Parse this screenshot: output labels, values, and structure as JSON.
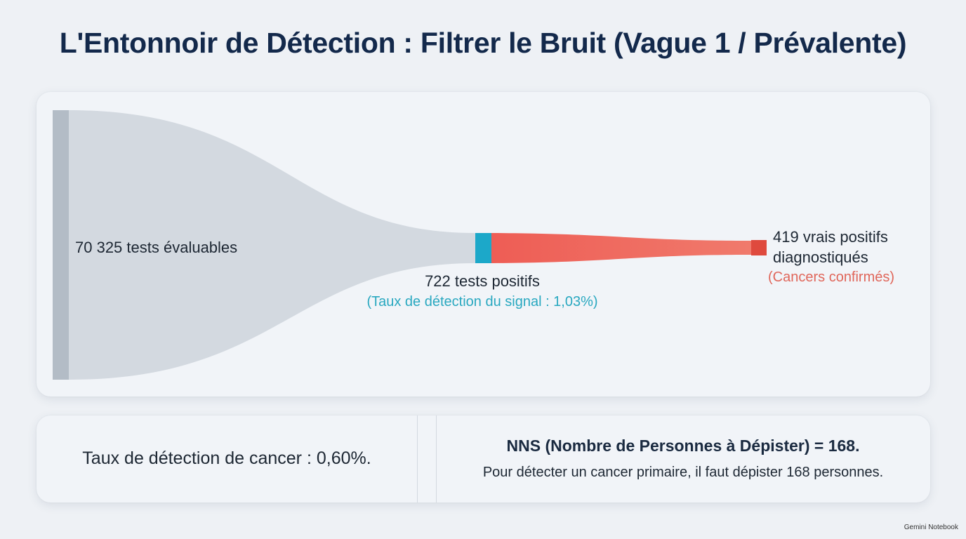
{
  "header": {
    "title": "L'Entonnoir de Détection : Filtrer le Bruit (Vague 1 / Prévalente)"
  },
  "funnel": {
    "start": {
      "label": "70 325 tests évaluables"
    },
    "middle": {
      "label": "722 tests positifs",
      "note": "(Taux de détection du signal : 1,03%)"
    },
    "end": {
      "label_line1": "419 vrais positifs",
      "label_line2": "diagnostiqués",
      "note": "(Cancers confirmés)"
    }
  },
  "summary": {
    "left": {
      "text": "Taux de détection de cancer : 0,60%."
    },
    "right": {
      "title": "NNS (Nombre de Personnes à Dépister) = 168.",
      "text": "Pour détecter un cancer primaire, il faut dépister 168 personnes."
    }
  },
  "footer": {
    "brand": "Gemini Notebook"
  }
}
